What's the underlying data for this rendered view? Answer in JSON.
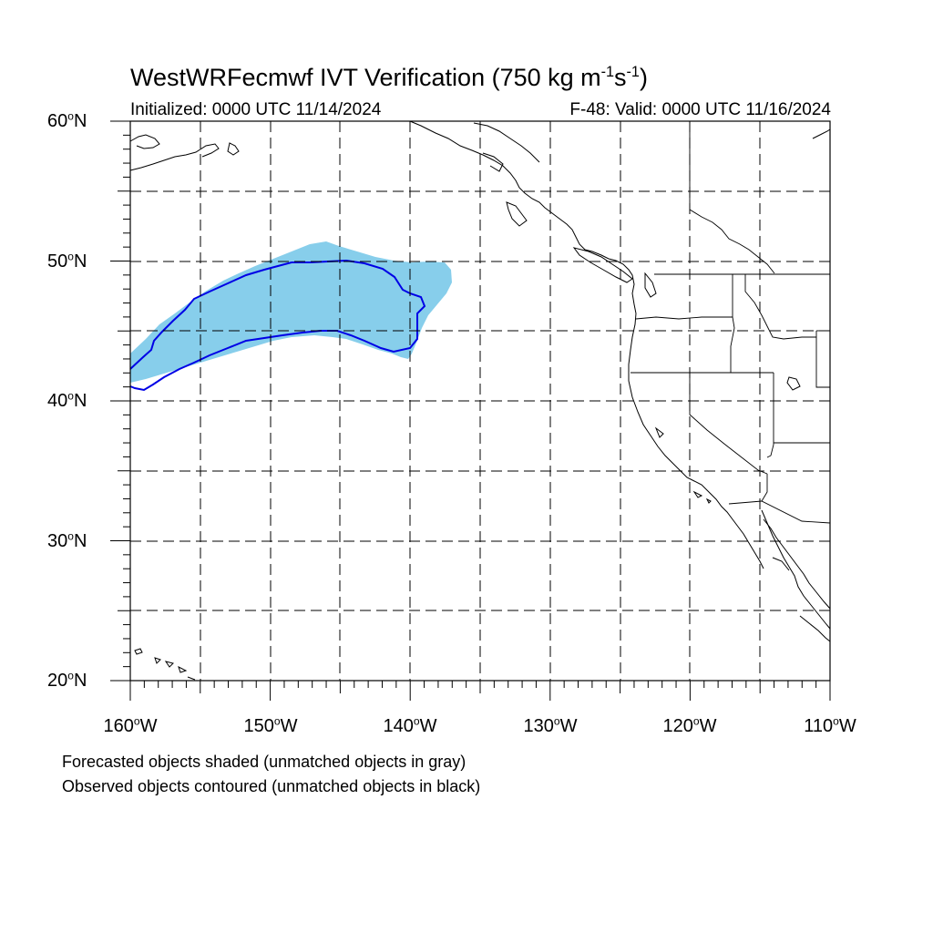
{
  "title": {
    "main": "WestWRFecmwf IVT Verification (750 kg m",
    "exp1": "-1",
    "mid": "s",
    "exp2": "-1",
    "end": ")"
  },
  "subtitle_left": "Initialized: 0000 UTC 11/14/2024",
  "subtitle_right": "F-48: Valid: 0000 UTC 11/16/2024",
  "lat_labels": [
    "60",
    "50",
    "40",
    "30",
    "20"
  ],
  "lat_suffix": "N",
  "lon_labels": [
    "160",
    "150",
    "140",
    "130",
    "120",
    "110"
  ],
  "lon_suffix": "W",
  "degree_symbol": "o",
  "footnote_1": "Forecasted objects shaded (unmatched objects in gray)",
  "footnote_2": "Observed objects contoured (unmatched objects in black)",
  "colors": {
    "forecast_fill": "#87ceeb",
    "observed_contour": "#0000e6",
    "coastline": "#000000",
    "grid": "#000000"
  },
  "map_extent": {
    "lon_min": -160,
    "lon_max": -110,
    "lat_min": 20,
    "lat_max": 60,
    "grid_step_deg": 5
  }
}
